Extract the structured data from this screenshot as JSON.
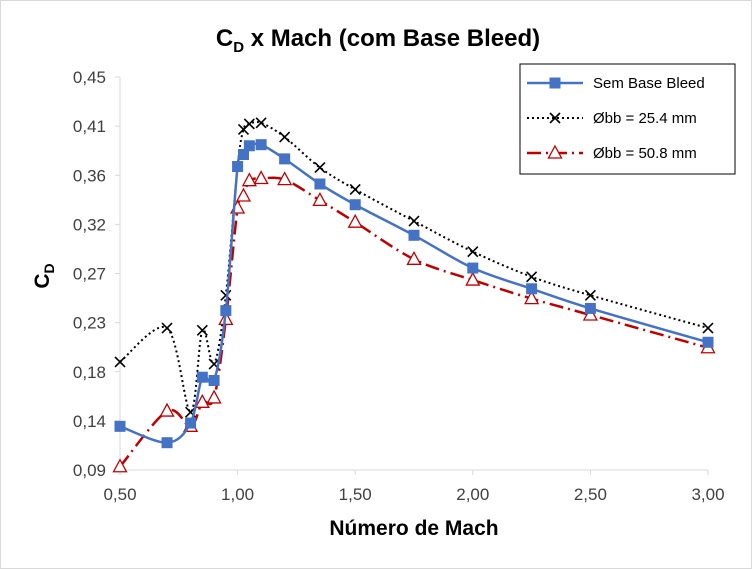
{
  "chart_data": {
    "type": "line",
    "title_main": "C",
    "title_sub": "D",
    "title_rest": " x Mach (com Base Bleed)",
    "xlabel": "Número de Mach",
    "ylabel_main": "C",
    "ylabel_sub": "D",
    "xlim": [
      0.5,
      3.0
    ],
    "ylim": [
      0.09,
      0.45
    ],
    "xticks": [
      0.5,
      1.0,
      1.5,
      2.0,
      2.5,
      3.0
    ],
    "xtick_labels": [
      "0,50",
      "1,00",
      "1,50",
      "2,00",
      "2,50",
      "3,00"
    ],
    "yticks": [
      0.09,
      0.135,
      0.18,
      0.225,
      0.27,
      0.315,
      0.36,
      0.405,
      0.45
    ],
    "ytick_labels": [
      "0,09",
      "0,14",
      "0,18",
      "0,23",
      "0,27",
      "0,32",
      "0,36",
      "0,41",
      "0,45"
    ],
    "grid": false,
    "legend_position": "top-right",
    "series": [
      {
        "name": "Sem Base Bleed",
        "color": "#4472c4",
        "marker": "square",
        "line": "solid",
        "x": [
          0.5,
          0.7,
          0.8,
          0.85,
          0.9,
          0.95,
          1.0,
          1.025,
          1.05,
          1.1,
          1.2,
          1.35,
          1.5,
          1.75,
          2.0,
          2.25,
          2.5,
          3.0
        ],
        "y": [
          0.13,
          0.115,
          0.133,
          0.175,
          0.172,
          0.236,
          0.368,
          0.379,
          0.387,
          0.388,
          0.375,
          0.352,
          0.333,
          0.305,
          0.275,
          0.256,
          0.238,
          0.207
        ]
      },
      {
        "name": "Øbb = 25.4 mm",
        "color": "#000000",
        "marker": "x",
        "line": "dotted",
        "x": [
          0.5,
          0.7,
          0.8,
          0.85,
          0.9,
          0.95,
          1.0,
          1.025,
          1.05,
          1.1,
          1.2,
          1.35,
          1.5,
          1.75,
          2.0,
          2.25,
          2.5,
          3.0
        ],
        "y": [
          0.189,
          0.22,
          0.143,
          0.218,
          0.187,
          0.25,
          0.368,
          0.402,
          0.407,
          0.408,
          0.395,
          0.367,
          0.347,
          0.318,
          0.29,
          0.267,
          0.25,
          0.22
        ]
      },
      {
        "name": "Øbb = 50.8 mm",
        "color": "#c00000",
        "marker": "triangle",
        "line": "dashdot",
        "x": [
          0.5,
          0.7,
          0.8,
          0.85,
          0.9,
          0.95,
          1.0,
          1.025,
          1.05,
          1.1,
          1.2,
          1.35,
          1.5,
          1.75,
          2.0,
          2.25,
          2.5,
          3.0
        ],
        "y": [
          0.093,
          0.144,
          0.13,
          0.152,
          0.156,
          0.228,
          0.33,
          0.341,
          0.355,
          0.357,
          0.356,
          0.337,
          0.317,
          0.283,
          0.264,
          0.247,
          0.232,
          0.202
        ]
      }
    ]
  }
}
